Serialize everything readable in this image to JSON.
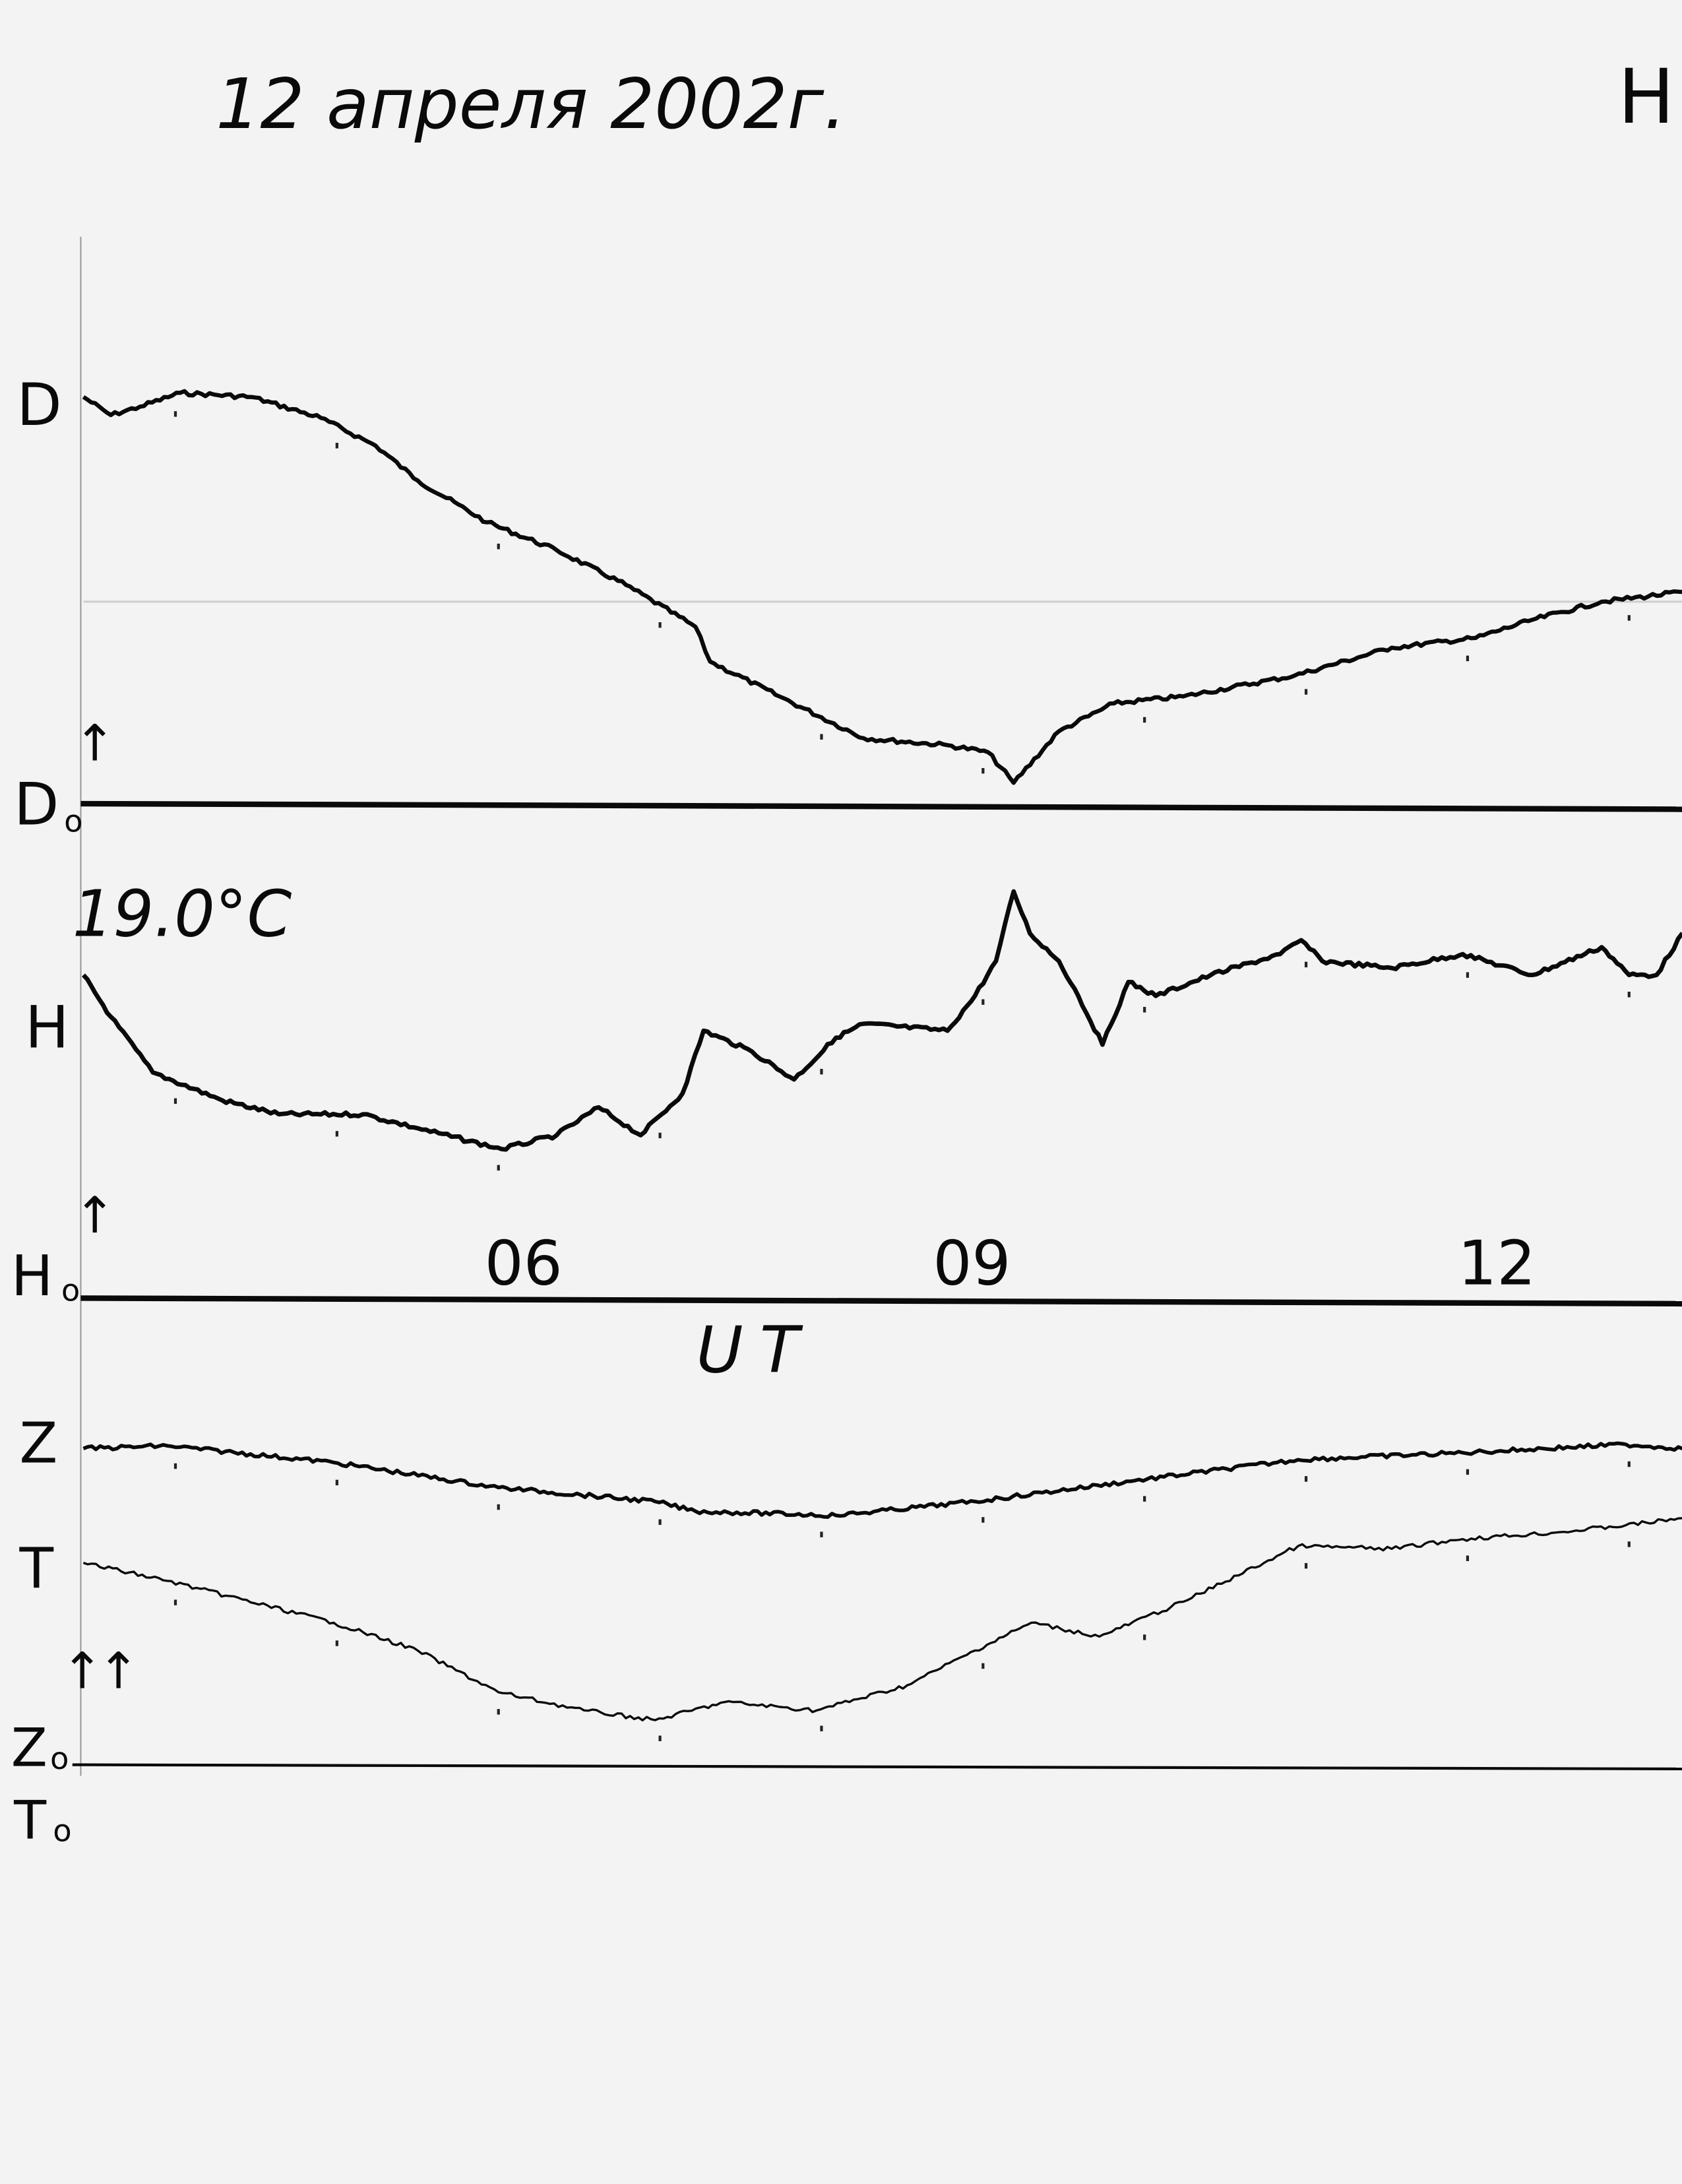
{
  "header": {
    "title": "12 апреля 2002г.",
    "corner_mark": "Н"
  },
  "temperature_note": "19.0°C",
  "chart_data": {
    "type": "line",
    "title": "12 апреля 2002г.",
    "xlabel": "UT",
    "x_tick_labels": [
      "06",
      "09",
      "12"
    ],
    "x_ticks": [
      6,
      9,
      12
    ],
    "xlim": [
      3.43,
      13.33
    ],
    "grid": false,
    "y_units": "relative deflection above baseline (arbitrary)",
    "series": [
      {
        "name": "D",
        "baseline_label": "D0",
        "color": "#0a0a0a",
        "x": [
          3.43,
          3.6,
          3.78,
          4.03,
          4.47,
          4.9,
          5.24,
          5.5,
          5.93,
          6.36,
          6.79,
          7.22,
          7.31,
          7.74,
          8.26,
          8.78,
          9.03,
          9.19,
          9.47,
          9.81,
          10.24,
          10.93,
          11.53,
          12.05,
          12.4,
          12.83,
          13.33
        ],
        "y": [
          29.2,
          27.9,
          28.5,
          29.5,
          29.2,
          27.7,
          25.7,
          23.2,
          20.2,
          18.2,
          15.7,
          12.7,
          10.2,
          7.7,
          4.7,
          4.2,
          3.7,
          1.5,
          5.2,
          7.2,
          7.7,
          9.2,
          11.2,
          11.9,
          13.2,
          14.5,
          15.2
        ]
      },
      {
        "name": "H",
        "baseline_label": "H0",
        "color": "#0a0a0a",
        "x": [
          3.43,
          3.6,
          3.86,
          4.29,
          4.64,
          5.16,
          5.5,
          6.02,
          6.36,
          6.62,
          6.88,
          7.14,
          7.27,
          7.57,
          7.83,
          8.09,
          8.26,
          8.78,
          8.95,
          9.08,
          9.19,
          9.29,
          9.47,
          9.59,
          9.74,
          9.9,
          10.07,
          10.41,
          10.84,
          10.97,
          11.1,
          11.53,
          11.97,
          12.4,
          12.83,
          13.0,
          13.17,
          13.33
        ],
        "y": [
          23.2,
          20.2,
          16.2,
          14.2,
          13.2,
          13.2,
          12.2,
          10.7,
          11.7,
          13.7,
          11.7,
          14.7,
          19.2,
          17.7,
          15.7,
          18.7,
          19.7,
          19.2,
          21.7,
          24.2,
          29.2,
          26.2,
          24.2,
          21.7,
          18.2,
          22.7,
          21.7,
          23.2,
          24.7,
          25.7,
          24.2,
          23.7,
          24.7,
          23.2,
          25.2,
          23.2,
          23.2,
          26.2
        ]
      },
      {
        "name": "Z",
        "baseline_label": "Z0",
        "color": "#0a0a0a",
        "x": [
          3.43,
          3.95,
          4.98,
          6.0,
          6.97,
          7.22,
          8.09,
          8.95,
          9.94,
          10.95,
          11.97,
          12.98,
          13.33
        ],
        "y": [
          22.7,
          22.9,
          21.7,
          19.9,
          18.9,
          18.2,
          17.9,
          18.9,
          20.4,
          21.9,
          22.4,
          23.0,
          22.7
        ]
      },
      {
        "name": "T",
        "baseline_label": "T0",
        "color": "#555555",
        "x": [
          3.43,
          3.95,
          4.98,
          5.5,
          6.0,
          6.53,
          6.97,
          7.4,
          7.97,
          8.53,
          8.95,
          9.3,
          9.72,
          10.24,
          10.95,
          11.53,
          11.97,
          12.57,
          12.98,
          13.33
        ],
        "y": [
          14.5,
          13.2,
          10.2,
          8.2,
          5.2,
          3.9,
          3.2,
          4.5,
          3.9,
          5.7,
          8.2,
          10.2,
          9.2,
          11.7,
          15.7,
          15.5,
          16.2,
          16.7,
          17.2,
          17.7
        ]
      }
    ]
  },
  "labels": {
    "D": "D",
    "D0": "D",
    "H": "H",
    "H0": "H",
    "Z": "Z",
    "T": "T",
    "Z0": "Z",
    "T0": "T",
    "sub0": "o",
    "arrow": "↑"
  }
}
